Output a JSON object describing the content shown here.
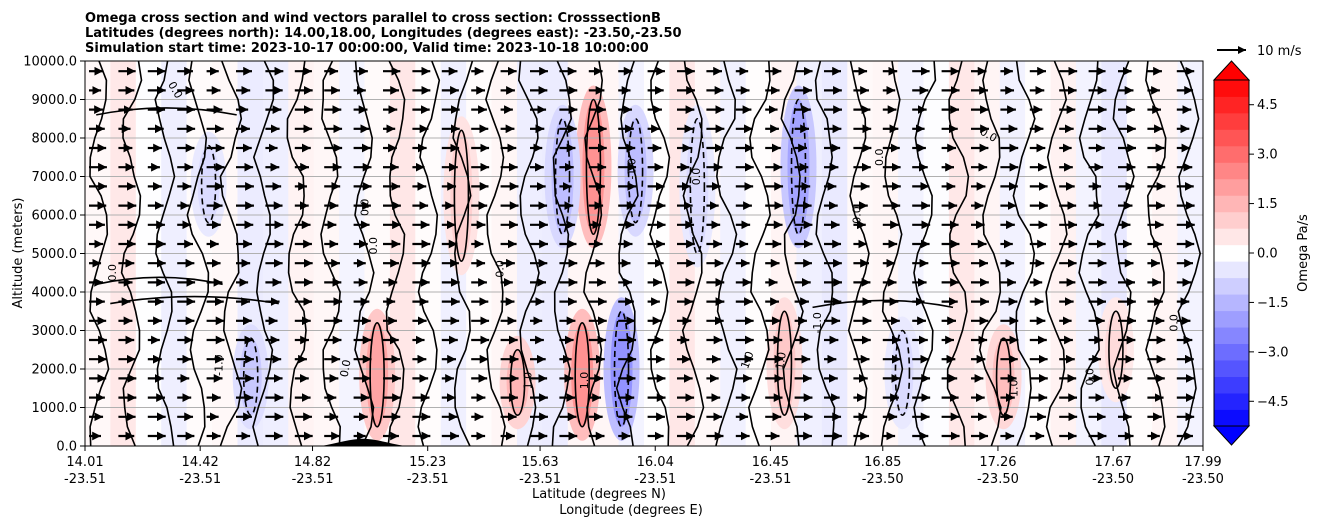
{
  "chart_data": {
    "type": "heatmap",
    "title_lines": [
      "Omega cross section and wind vectors parallel to cross section: CrosssectionB",
      "Latitudes (degrees north): 14.00,18.00, Longitudes (degrees east): -23.50,-23.50",
      "Simulation start time: 2023-10-17 00:00:00, Valid time: 2023-10-18 10:00:00"
    ],
    "xlabel_lat": "Latitude (degrees N)",
    "xlabel_lon": "Longitude (degrees E)",
    "ylabel": "Altitude (meters)",
    "xlim": [
      14.01,
      17.99
    ],
    "ylim": [
      0,
      10000
    ],
    "x_ticks": [
      {
        "lat": "14.01",
        "lon": "-23.51",
        "value": 14.01
      },
      {
        "lat": "14.42",
        "lon": "-23.51",
        "value": 14.42
      },
      {
        "lat": "14.82",
        "lon": "-23.51",
        "value": 14.82
      },
      {
        "lat": "15.23",
        "lon": "-23.51",
        "value": 15.23
      },
      {
        "lat": "15.63",
        "lon": "-23.51",
        "value": 15.63
      },
      {
        "lat": "16.04",
        "lon": "-23.51",
        "value": 16.04
      },
      {
        "lat": "16.45",
        "lon": "-23.51",
        "value": 16.45
      },
      {
        "lat": "16.85",
        "lon": "-23.50",
        "value": 16.85
      },
      {
        "lat": "17.26",
        "lon": "-23.50",
        "value": 17.26
      },
      {
        "lat": "17.67",
        "lon": "-23.50",
        "value": 17.67
      },
      {
        "lat": "17.99",
        "lon": "-23.50",
        "value": 17.99
      }
    ],
    "y_ticks": [
      "0.0",
      "1000.0",
      "2000.0",
      "3000.0",
      "4000.0",
      "5000.0",
      "6000.0",
      "7000.0",
      "8000.0",
      "9000.0",
      "10000.0"
    ],
    "y_tick_values": [
      0,
      1000,
      2000,
      3000,
      4000,
      5000,
      6000,
      7000,
      8000,
      9000,
      10000
    ],
    "grid": "horizontal",
    "colorbar": {
      "label": "Omega Pa/s",
      "range": [
        -5.25,
        5.25
      ],
      "ticks": [
        "4.5",
        "3.0",
        "1.5",
        "0.0",
        "−1.5",
        "−3.0",
        "−4.5"
      ],
      "tick_values": [
        4.5,
        3.0,
        1.5,
        0.0,
        -1.5,
        -3.0,
        -4.5
      ],
      "extend": "both",
      "colormap": "bwr",
      "min_color": "#0000ff",
      "max_color": "#ff0000"
    },
    "quiver_key": {
      "label": "10 m/s",
      "value": 10
    },
    "terrain_peak": {
      "lat": 15.0,
      "height": 170
    },
    "contour_levels": [
      -1.0,
      0.0,
      1.0
    ],
    "contour_label_text": [
      "0.0",
      "1.0",
      "-1.0"
    ],
    "omega_features": [
      {
        "lat": 15.05,
        "alt_min": 500,
        "alt_max": 3200,
        "omega": 2.5
      },
      {
        "lat": 14.6,
        "alt_min": 800,
        "alt_max": 2800,
        "omega": -1.5
      },
      {
        "lat": 14.45,
        "alt_min": 5800,
        "alt_max": 7800,
        "omega": -1.0
      },
      {
        "lat": 15.35,
        "alt_min": 4800,
        "alt_max": 8200,
        "omega": 1.3
      },
      {
        "lat": 15.55,
        "alt_min": 800,
        "alt_max": 2500,
        "omega": 2.0
      },
      {
        "lat": 15.78,
        "alt_min": 500,
        "alt_max": 3200,
        "omega": 3.0
      },
      {
        "lat": 15.82,
        "alt_min": 5500,
        "alt_max": 9000,
        "omega": 3.0
      },
      {
        "lat": 15.71,
        "alt_min": 5500,
        "alt_max": 8500,
        "omega": -1.8
      },
      {
        "lat": 15.92,
        "alt_min": 500,
        "alt_max": 3500,
        "omega": -3.0
      },
      {
        "lat": 15.97,
        "alt_min": 5800,
        "alt_max": 8500,
        "omega": -1.8
      },
      {
        "lat": 16.19,
        "alt_min": 5000,
        "alt_max": 8500,
        "omega": -1.0
      },
      {
        "lat": 16.55,
        "alt_min": 5500,
        "alt_max": 9000,
        "omega": -2.5
      },
      {
        "lat": 16.5,
        "alt_min": 800,
        "alt_max": 3500,
        "omega": 1.5
      },
      {
        "lat": 17.28,
        "alt_min": 800,
        "alt_max": 2800,
        "omega": 1.8
      },
      {
        "lat": 16.92,
        "alt_min": 800,
        "alt_max": 3000,
        "omega": -1.0
      },
      {
        "lat": 17.68,
        "alt_min": 1500,
        "alt_max": 3500,
        "omega": 1.0
      }
    ]
  }
}
